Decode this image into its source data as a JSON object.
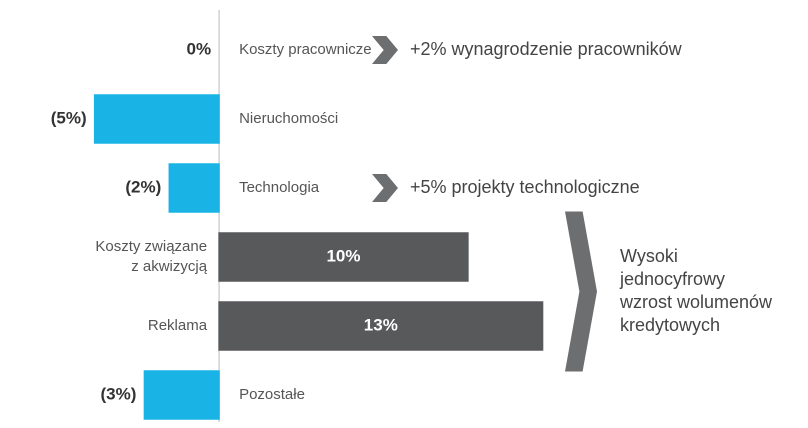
{
  "chart_data": {
    "type": "bar",
    "orientation": "horizontal",
    "categories": [
      "Koszty pracownicze",
      "Nieruchomości",
      "Technologia",
      "Koszty związane\nz akwizycją",
      "Reklama",
      "Pozostałe"
    ],
    "values": [
      0,
      -5,
      -2,
      10,
      13,
      -3
    ],
    "value_labels": [
      "0%",
      "(5%)",
      "(2%)",
      "10%",
      "13%",
      "(3%)"
    ],
    "colors": {
      "negative": "#1ab3e6",
      "positive": "#58595b"
    },
    "xlim": [
      -8,
      13.5
    ],
    "annotations": [
      "+2% wynagrodzenie pracowników",
      "+5% projekty technologiczne",
      "Wysoki\njednocyfrowy\nwzrost wolumenów\nkredytowych"
    ]
  }
}
